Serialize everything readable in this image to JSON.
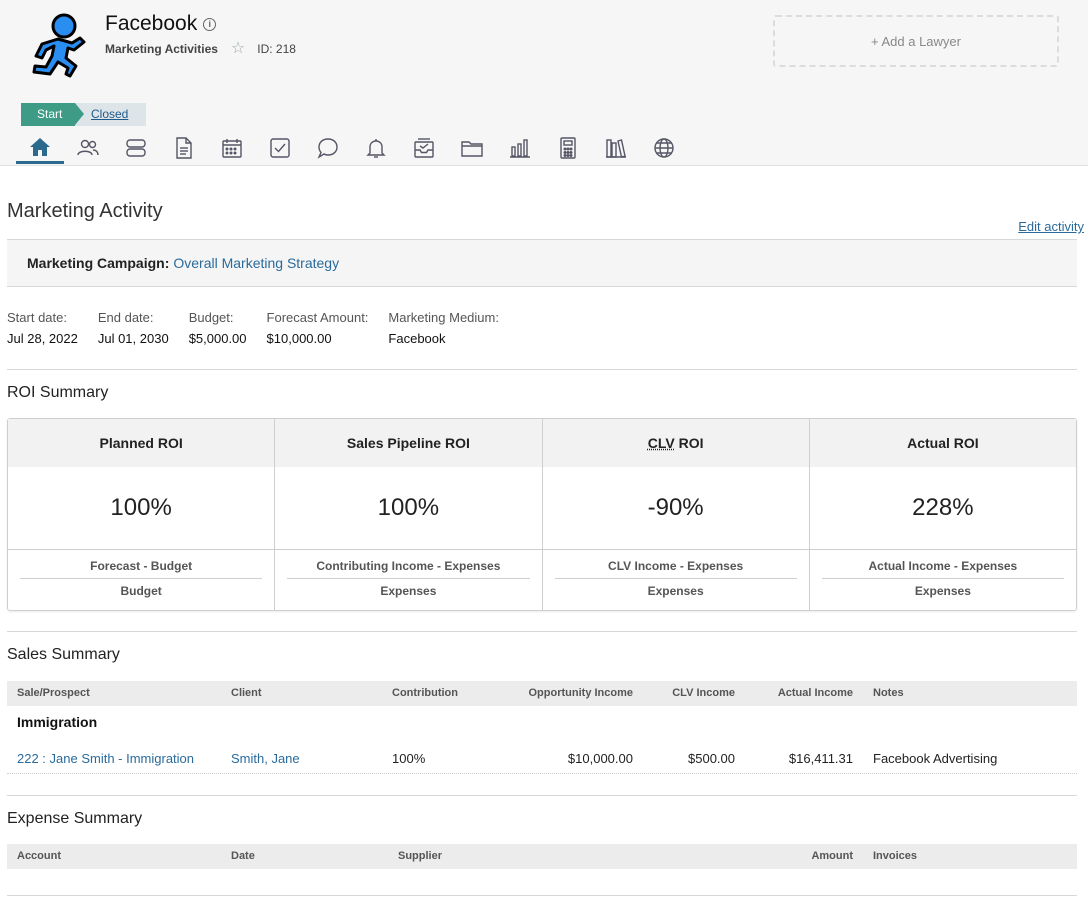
{
  "header": {
    "page_name": "Facebook",
    "module_name": "Marketing Activities",
    "record_id": "ID: 218",
    "add_lawyer": "+ Add a Lawyer",
    "stages": {
      "start": "Start",
      "closed": "Closed"
    },
    "nav_icons": [
      "home-icon",
      "people-icon",
      "records-icon",
      "document-icon",
      "calendar-icon",
      "task-check-icon",
      "chat-icon",
      "bell-icon",
      "inbox-icon",
      "folder-icon",
      "bar-chart-icon",
      "calculator-icon",
      "library-icon",
      "globe-icon"
    ]
  },
  "activity": {
    "title": "Marketing Activity",
    "edit_link": "Edit activity",
    "campaign_label": "Marketing Campaign:",
    "campaign_value": "Overall Marketing Strategy",
    "details": [
      {
        "label": "Start date:",
        "value": "Jul 28, 2022"
      },
      {
        "label": "End date:",
        "value": "Jul 01, 2030"
      },
      {
        "label": "Budget:",
        "value": "$5,000.00"
      },
      {
        "label": "Forecast Amount:",
        "value": "$10,000.00"
      },
      {
        "label": "Marketing Medium:",
        "value": "Facebook"
      }
    ]
  },
  "roi": {
    "title": "ROI Summary",
    "cards": [
      {
        "head": "Planned ROI",
        "value": "100%",
        "numerator": "Forecast - Budget",
        "denominator": "Budget"
      },
      {
        "head": "Sales Pipeline ROI",
        "value": "100%",
        "numerator": "Contributing Income - Expenses",
        "denominator": "Expenses"
      },
      {
        "head_abbr": "CLV",
        "head_rest": " ROI",
        "value": "-90%",
        "numerator": "CLV Income - Expenses",
        "denominator": "Expenses"
      },
      {
        "head": "Actual ROI",
        "value": "228%",
        "numerator": "Actual Income - Expenses",
        "denominator": "Expenses"
      }
    ]
  },
  "sales": {
    "title": "Sales Summary",
    "columns": [
      "Sale/Prospect",
      "Client",
      "Contribution",
      "Opportunity Income",
      "CLV Income",
      "Actual Income",
      "Notes"
    ],
    "group": "Immigration",
    "rows": [
      {
        "sale": "222 : Jane Smith - Immigration",
        "client": "Smith, Jane",
        "contribution": "100%",
        "opportunity_income": "$10,000.00",
        "clv_income": "$500.00",
        "actual_income": "$16,411.31",
        "notes": "Facebook Advertising"
      }
    ]
  },
  "expenses": {
    "title": "Expense Summary",
    "columns": [
      "Account",
      "Date",
      "Supplier",
      "Amount",
      "Invoices"
    ]
  },
  "colors": {
    "accent": "#3d9b86",
    "link": "#2a6b9c",
    "header_bg": "#f6f6f6"
  }
}
